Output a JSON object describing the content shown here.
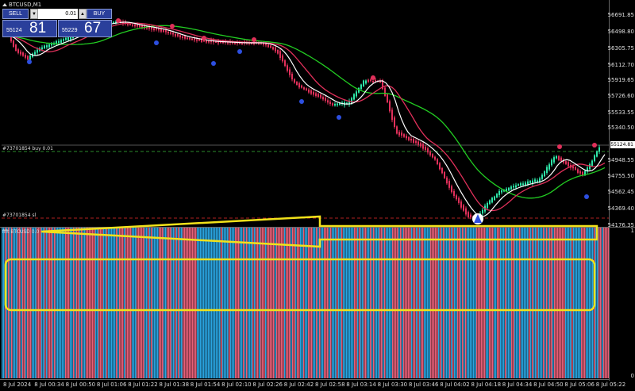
{
  "window": {
    "title": "BTCUSD,M1"
  },
  "trade_panel": {
    "sell_label": "SELL",
    "buy_label": "BUY",
    "lot": "0.01",
    "bid_prefix": "55124",
    "bid_big": "81",
    "ask_prefix": "55229",
    "ask_big": "67"
  },
  "trade_lines": {
    "buy": "#73701854 buy 0.01",
    "sl": "#73701854 sl"
  },
  "indicator": {
    "title": "ffft BTCUSD 0.0"
  },
  "price_axis": {
    "labels": [
      "56691.85",
      "56498.80",
      "56305.75",
      "56112.70",
      "55919.65",
      "55726.60",
      "55533.55",
      "55340.50",
      "55124.81",
      "54948.55",
      "54755.50",
      "54562.45",
      "54369.40",
      "54176.35"
    ],
    "current": "55124.81"
  },
  "indicator_axis": {
    "labels": [
      "1",
      "0"
    ]
  },
  "time_axis": {
    "labels": [
      "8 Jul 2024",
      "8 Jul 00:34",
      "8 Jul 00:50",
      "8 Jul 01:06",
      "8 Jul 01:22",
      "8 Jul 01:38",
      "8 Jul 01:54",
      "8 Jul 02:10",
      "8 Jul 02:26",
      "8 Jul 02:42",
      "8 Jul 02:58",
      "8 Jul 03:14",
      "8 Jul 03:30",
      "8 Jul 03:46",
      "8 Jul 04:02",
      "8 Jul 04:18",
      "8 Jul 04:34",
      "8 Jul 04:50",
      "8 Jul 05:06",
      "8 Jul 05:22"
    ]
  },
  "colors": {
    "bull": "#2ee6a8",
    "bear": "#e0305a",
    "ma_fast": "#ffffff",
    "ma_mid": "#e0305a",
    "ma_slow": "#22cc22",
    "highlight": "#f2e21a",
    "hist_a": "#e8607a",
    "hist_b": "#2aa4e0",
    "fractal_up": "#e0305a",
    "fractal_down": "#2d4fe0"
  }
}
